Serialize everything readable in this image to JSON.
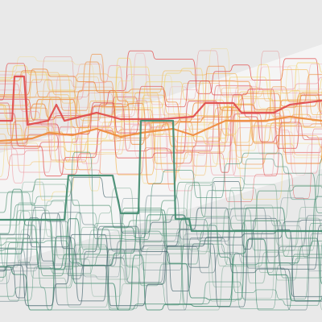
{
  "artwork": {
    "kind": "generative line composition",
    "background_color": "#e9e9e9",
    "highlight_band_color": "#ffffff",
    "line_colors": {
      "red": "#e04848",
      "pink": "#f0a0a8",
      "orange": "#ee8a3a",
      "amber": "#f4b24a",
      "yellow": "#f2cf60",
      "teal": "#3f8a6e",
      "green": "#6fa38a",
      "slate": "#4a6a72"
    },
    "band_families": [
      {
        "name": "warm-upper",
        "palette": [
          "red",
          "pink",
          "orange",
          "amber",
          "yellow"
        ],
        "line_count": 34
      },
      {
        "name": "cool-lower",
        "palette": [
          "teal",
          "green",
          "slate"
        ],
        "line_count": 28
      }
    ],
    "emphasis_lines": [
      {
        "name": "red-trace",
        "color": "red"
      },
      {
        "name": "orange-trace",
        "color": "orange"
      },
      {
        "name": "teal-trace",
        "color": "teal"
      }
    ]
  }
}
